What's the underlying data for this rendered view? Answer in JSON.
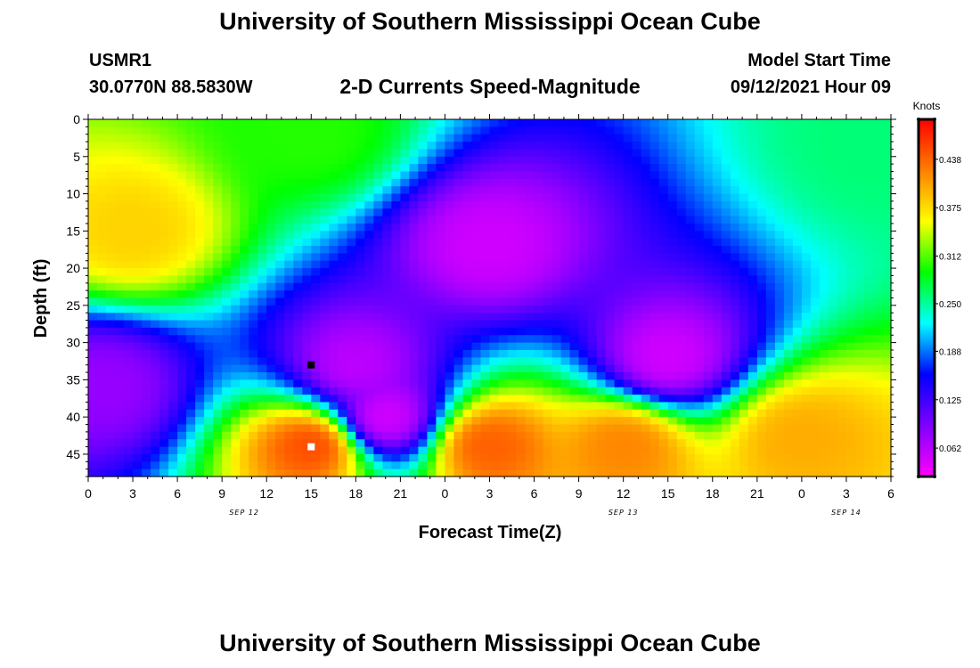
{
  "header": {
    "title": "University of Southern Mississippi Ocean Cube",
    "station_id": "USMR1",
    "coords": "30.0770N  88.5830W",
    "subtitle": "2-D Currents Speed-Magnitude",
    "model_start_label": "Model Start Time",
    "model_start_value": "09/12/2021 Hour 09"
  },
  "footer": {
    "title": "University of Southern Mississippi Ocean Cube"
  },
  "chart_data": {
    "type": "heatmap",
    "title": "2-D Currents Speed-Magnitude",
    "xlabel": "Forecast Time(Z)",
    "ylabel": "Depth (ft)",
    "x_tick_labels": [
      "0",
      "3",
      "6",
      "9",
      "12",
      "15",
      "18",
      "21",
      "0",
      "3",
      "6",
      "9",
      "12",
      "15",
      "18",
      "21",
      "0",
      "3",
      "6"
    ],
    "x_date_labels": [
      {
        "label": "SEP 12",
        "at_tick": 3.5
      },
      {
        "label": "SEP 13",
        "at_tick": 12
      },
      {
        "label": "SEP 14",
        "at_tick": 17
      }
    ],
    "x_range_hours": [
      0,
      54
    ],
    "y_tick_labels": [
      "0",
      "5",
      "10",
      "15",
      "20",
      "25",
      "30",
      "35",
      "40",
      "45"
    ],
    "y_range_ft": [
      0,
      48
    ],
    "y_inverted": true,
    "colorbar": {
      "title": "Knots",
      "tick_labels": [
        "0.438",
        "0.375",
        "0.312",
        "0.250",
        "0.188",
        "0.125",
        "0.062"
      ],
      "tick_values": [
        0.438,
        0.375,
        0.312,
        0.25,
        0.188,
        0.125,
        0.062
      ],
      "range": [
        0.025,
        0.49
      ],
      "colors": [
        "#ff00ff",
        "#8000ff",
        "#0000ff",
        "#00ffff",
        "#00ff00",
        "#ffff00",
        "#ff8000",
        "#ff0000"
      ]
    },
    "approx_features": [
      {
        "hour": 3,
        "depth_ft": 15,
        "speed_kn": 0.38
      },
      {
        "hour": 1,
        "depth_ft": 36,
        "speed_kn": 0.08
      },
      {
        "hour": 15,
        "depth_ft": 2,
        "speed_kn": 0.3
      },
      {
        "hour": 18,
        "depth_ft": 33,
        "speed_kn": 0.06
      },
      {
        "hour": 20,
        "depth_ft": 40,
        "speed_kn": 0.05
      },
      {
        "hour": 15,
        "depth_ft": 44,
        "speed_kn": 0.45
      },
      {
        "hour": 27,
        "depth_ft": 17,
        "speed_kn": 0.05
      },
      {
        "hour": 27,
        "depth_ft": 44,
        "speed_kn": 0.44
      },
      {
        "hour": 36,
        "depth_ft": 44,
        "speed_kn": 0.42
      },
      {
        "hour": 39,
        "depth_ft": 32,
        "speed_kn": 0.05
      },
      {
        "hour": 48,
        "depth_ft": 43,
        "speed_kn": 0.4
      },
      {
        "hour": 53,
        "depth_ft": 3,
        "speed_kn": 0.26
      }
    ],
    "markers": [
      {
        "hour": 15,
        "depth_ft": 33,
        "color": "#000000"
      },
      {
        "hour": 15,
        "depth_ft": 44,
        "color": "#ffffff"
      }
    ]
  }
}
